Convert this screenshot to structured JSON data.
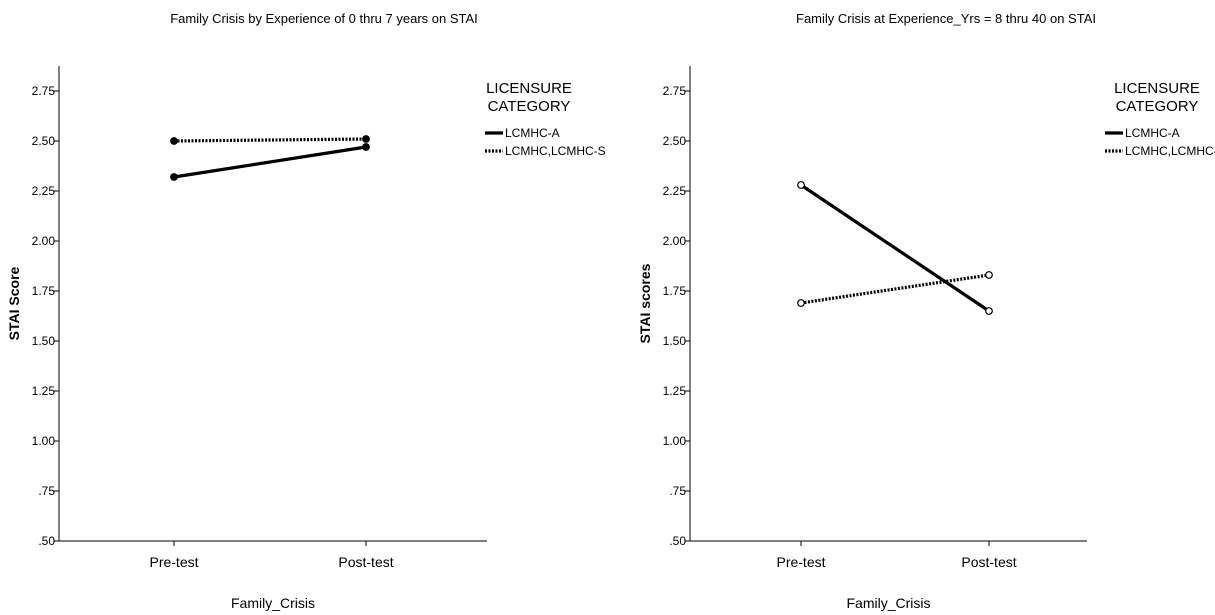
{
  "chart_data": [
    {
      "type": "line",
      "title": "Family Crisis by  Experience of 0 thru 7 years on STAI",
      "xlabel": "Family_Crisis",
      "ylabel": "STAI Score",
      "categories": [
        "Pre-test",
        "Post-test"
      ],
      "ylim": [
        0.5,
        2.875
      ],
      "y_ticks": [
        ".50",
        ".75",
        "1.00",
        "1.25",
        "1.50",
        "1.75",
        "2.00",
        "2.25",
        "2.50",
        "2.75"
      ],
      "legend": {
        "title_line1": "LICENSURE",
        "title_line2": "CATEGORY",
        "position": "right"
      },
      "grid": false,
      "marker": "filled-circle",
      "series": [
        {
          "name": "LCMHC-A",
          "values": [
            2.32,
            2.47
          ],
          "style": "solid"
        },
        {
          "name": "LCMHC,LCMHC-S",
          "values": [
            2.5,
            2.51
          ],
          "style": "dotted"
        }
      ]
    },
    {
      "type": "line",
      "title": "Family Crisis at Experience_Yrs = 8 thru 40 on STAI",
      "xlabel": "Family_Crisis",
      "ylabel": "STAI scores",
      "categories": [
        "Pre-test",
        "Post-test"
      ],
      "ylim": [
        0.5,
        2.875
      ],
      "y_ticks": [
        ".50",
        ".75",
        "1.00",
        "1.25",
        "1.50",
        "1.75",
        "2.00",
        "2.25",
        "2.50",
        "2.75"
      ],
      "legend": {
        "title_line1": "LICENSURE",
        "title_line2": "CATEGORY",
        "position": "right"
      },
      "grid": false,
      "marker": "open-circle",
      "series": [
        {
          "name": "LCMHC-A",
          "values": [
            2.28,
            1.65
          ],
          "style": "solid"
        },
        {
          "name": "LCMHC,LCMHC-S",
          "values": [
            1.69,
            1.83
          ],
          "style": "dotted"
        }
      ]
    }
  ],
  "colors": {
    "line": "#000000",
    "background": "#ffffff"
  }
}
